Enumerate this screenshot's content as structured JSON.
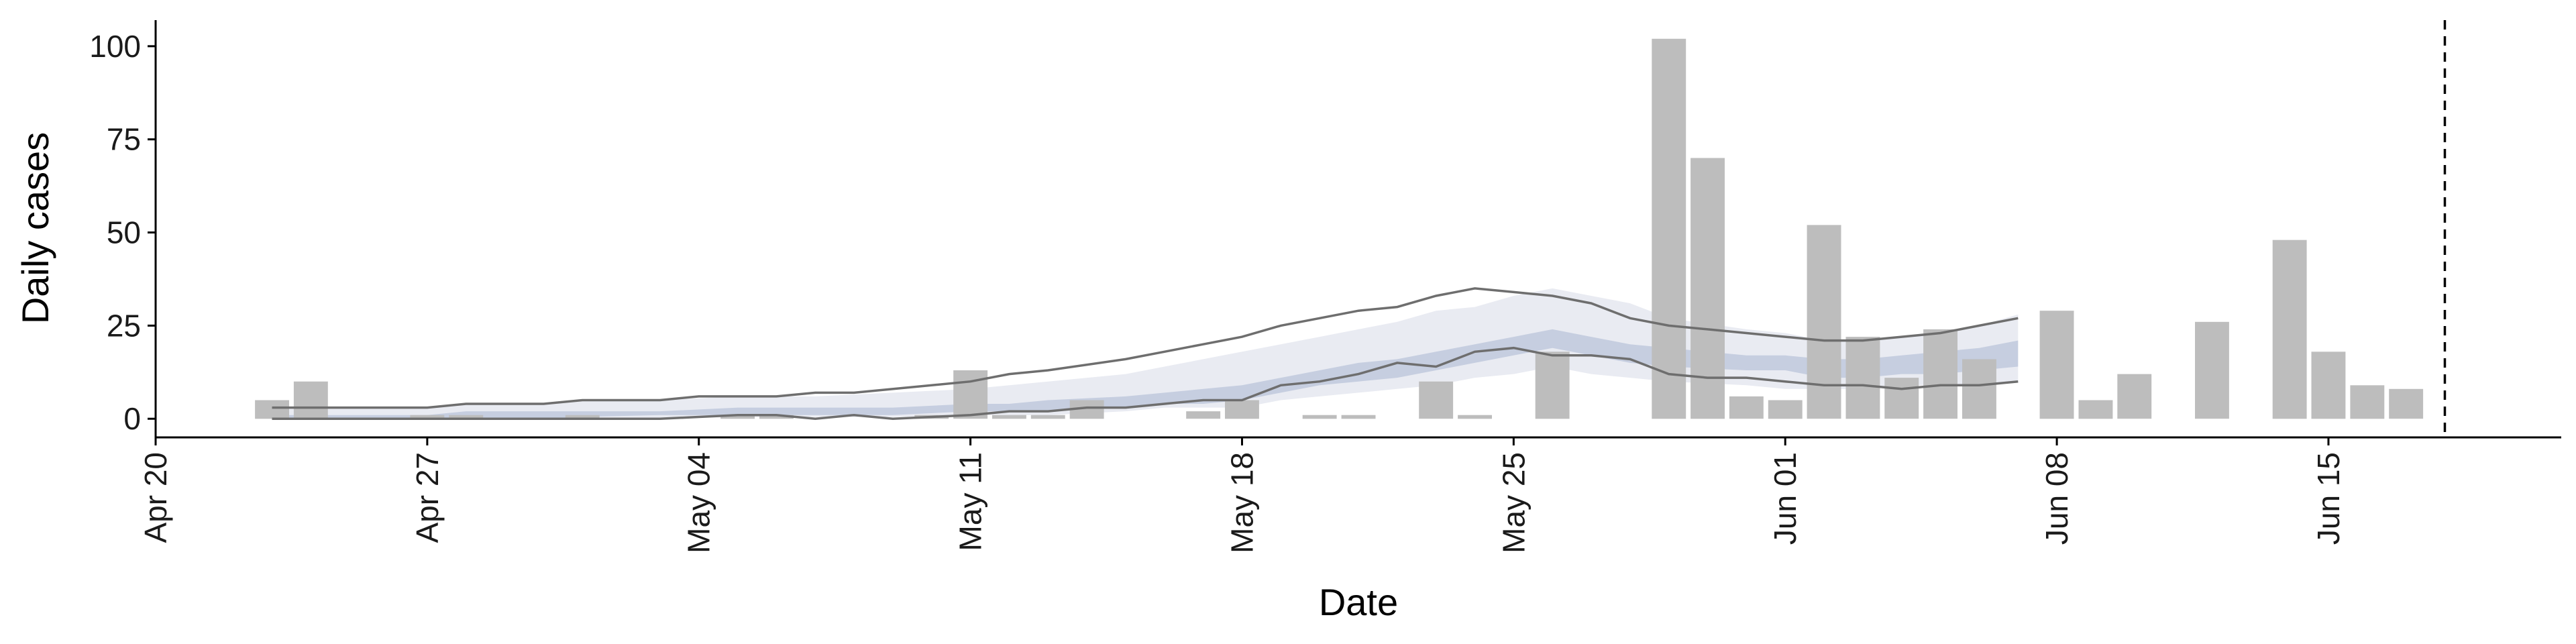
{
  "chart_data": {
    "type": "bar",
    "xlabel": "Date",
    "ylabel": "Daily cases",
    "x_range": [
      "2020-04-20",
      "2020-06-21"
    ],
    "ylim": [
      -5,
      107
    ],
    "y_ticks": [
      0,
      25,
      50,
      75,
      100
    ],
    "x_ticks": [
      {
        "date": "2020-04-20",
        "label": "Apr 20"
      },
      {
        "date": "2020-04-27",
        "label": "Apr 27"
      },
      {
        "date": "2020-05-04",
        "label": "May 04"
      },
      {
        "date": "2020-05-11",
        "label": "May 11"
      },
      {
        "date": "2020-05-18",
        "label": "May 18"
      },
      {
        "date": "2020-05-25",
        "label": "May 25"
      },
      {
        "date": "2020-06-01",
        "label": "Jun 01"
      },
      {
        "date": "2020-06-08",
        "label": "Jun 08"
      },
      {
        "date": "2020-06-15",
        "label": "Jun 15"
      }
    ],
    "grid": false,
    "legend": "none",
    "colors": {
      "bars": "#bdbdbd",
      "band_outer": "#e9ebf2",
      "band_inner": "#c6cee0",
      "band_lines": "#6e6e6e",
      "axis": "#000000"
    },
    "daily_cases": [
      {
        "date": "2020-04-23",
        "value": 5
      },
      {
        "date": "2020-04-24",
        "value": 10
      },
      {
        "date": "2020-04-27",
        "value": 1
      },
      {
        "date": "2020-04-28",
        "value": 1
      },
      {
        "date": "2020-05-01",
        "value": 1
      },
      {
        "date": "2020-05-05",
        "value": 1
      },
      {
        "date": "2020-05-06",
        "value": 1
      },
      {
        "date": "2020-05-10",
        "value": 1
      },
      {
        "date": "2020-05-11",
        "value": 13
      },
      {
        "date": "2020-05-12",
        "value": 1
      },
      {
        "date": "2020-05-13",
        "value": 1
      },
      {
        "date": "2020-05-14",
        "value": 5
      },
      {
        "date": "2020-05-17",
        "value": 2
      },
      {
        "date": "2020-05-18",
        "value": 5
      },
      {
        "date": "2020-05-20",
        "value": 1
      },
      {
        "date": "2020-05-21",
        "value": 1
      },
      {
        "date": "2020-05-23",
        "value": 10
      },
      {
        "date": "2020-05-24",
        "value": 1
      },
      {
        "date": "2020-05-26",
        "value": 18
      },
      {
        "date": "2020-05-29",
        "value": 102
      },
      {
        "date": "2020-05-30",
        "value": 70
      },
      {
        "date": "2020-05-31",
        "value": 6
      },
      {
        "date": "2020-06-01",
        "value": 5
      },
      {
        "date": "2020-06-02",
        "value": 52
      },
      {
        "date": "2020-06-03",
        "value": 22
      },
      {
        "date": "2020-06-04",
        "value": 11
      },
      {
        "date": "2020-06-05",
        "value": 24
      },
      {
        "date": "2020-06-06",
        "value": 16
      },
      {
        "date": "2020-06-08",
        "value": 29
      },
      {
        "date": "2020-06-09",
        "value": 5
      },
      {
        "date": "2020-06-10",
        "value": 12
      },
      {
        "date": "2020-06-12",
        "value": 26
      },
      {
        "date": "2020-06-14",
        "value": 48
      },
      {
        "date": "2020-06-15",
        "value": 18
      },
      {
        "date": "2020-06-16",
        "value": 9
      },
      {
        "date": "2020-06-17",
        "value": 8
      }
    ],
    "estimate_band": {
      "dates": [
        "2020-04-23",
        "2020-04-27",
        "2020-04-28",
        "2020-04-30",
        "2020-05-01",
        "2020-05-03",
        "2020-05-05",
        "2020-05-07",
        "2020-05-09",
        "2020-05-11",
        "2020-05-12",
        "2020-05-13",
        "2020-05-15",
        "2020-05-16",
        "2020-05-17",
        "2020-05-18",
        "2020-05-19",
        "2020-05-20",
        "2020-05-21",
        "2020-05-22",
        "2020-05-23",
        "2020-05-24",
        "2020-05-25",
        "2020-05-26",
        "2020-05-27",
        "2020-05-28",
        "2020-05-29",
        "2020-05-31",
        "2020-06-01",
        "2020-06-02",
        "2020-06-03",
        "2020-06-04",
        "2020-06-05",
        "2020-06-06",
        "2020-06-07"
      ],
      "upper_90": [
        3,
        3,
        4,
        4,
        5,
        5,
        6,
        6,
        7,
        8,
        9,
        10,
        12,
        14,
        16,
        18,
        20,
        22,
        24,
        26,
        29,
        30,
        33,
        35,
        33,
        31,
        27,
        24,
        23,
        21,
        21,
        22,
        23,
        25,
        28
      ],
      "upper_50": [
        1,
        1,
        2,
        2,
        2,
        2,
        3,
        3,
        3,
        4,
        4,
        5,
        6,
        7,
        8,
        9,
        11,
        13,
        15,
        16,
        18,
        20,
        22,
        24,
        22,
        20,
        19,
        17,
        17,
        16,
        16,
        17,
        18,
        19,
        21
      ],
      "median": [
        0.5,
        1,
        1,
        1,
        1.5,
        1.5,
        2,
        2,
        2,
        3,
        3,
        3.5,
        5,
        5.5,
        6,
        7,
        9,
        11,
        12.5,
        14,
        16,
        18,
        20,
        22,
        21,
        19,
        18,
        16,
        15,
        14,
        14,
        15,
        15,
        16,
        17
      ],
      "lower_50": [
        0,
        0,
        0,
        0,
        0.5,
        1,
        1,
        1,
        1,
        2,
        2,
        2,
        3,
        4,
        4,
        5,
        7,
        9,
        10,
        11,
        13,
        15,
        17,
        19,
        17,
        15,
        14,
        13,
        13,
        11,
        11,
        12,
        12,
        13,
        14
      ],
      "lower_90": [
        0,
        0,
        0,
        0,
        0,
        0,
        0.5,
        0.5,
        0.5,
        1,
        1,
        1,
        2,
        3,
        3,
        3,
        5,
        6,
        7,
        8,
        9,
        11,
        12,
        14,
        12,
        11,
        10,
        9,
        8,
        8,
        8,
        9,
        9,
        9,
        10
      ]
    },
    "lines": {
      "upper": {
        "dates": [
          "2020-04-23",
          "2020-04-27",
          "2020-04-28",
          "2020-04-30",
          "2020-05-01",
          "2020-05-03",
          "2020-05-04",
          "2020-05-06",
          "2020-05-07",
          "2020-05-08",
          "2020-05-11",
          "2020-05-12",
          "2020-05-13",
          "2020-05-15",
          "2020-05-16",
          "2020-05-17",
          "2020-05-18",
          "2020-05-19",
          "2020-05-20",
          "2020-05-21",
          "2020-05-22",
          "2020-05-23",
          "2020-05-24",
          "2020-05-25",
          "2020-05-26",
          "2020-05-27",
          "2020-05-28",
          "2020-05-29",
          "2020-05-30",
          "2020-05-31",
          "2020-06-01",
          "2020-06-02",
          "2020-06-03",
          "2020-06-04",
          "2020-06-05",
          "2020-06-06",
          "2020-06-07"
        ],
        "values": [
          3,
          3,
          4,
          4,
          5,
          5,
          6,
          6,
          7,
          7,
          10,
          12,
          13,
          16,
          18,
          20,
          22,
          25,
          27,
          29,
          30,
          33,
          35,
          34,
          33,
          31,
          27,
          25,
          24,
          23,
          22,
          21,
          21,
          22,
          23,
          25,
          27
        ]
      },
      "lower": {
        "dates": [
          "2020-04-23",
          "2020-04-27",
          "2020-04-28",
          "2020-04-30",
          "2020-05-01",
          "2020-05-02",
          "2020-05-03",
          "2020-05-04",
          "2020-05-05",
          "2020-05-06",
          "2020-05-07",
          "2020-05-08",
          "2020-05-09",
          "2020-05-10",
          "2020-05-11",
          "2020-05-12",
          "2020-05-13",
          "2020-05-14",
          "2020-05-15",
          "2020-05-16",
          "2020-05-17",
          "2020-05-18",
          "2020-05-19",
          "2020-05-20",
          "2020-05-21",
          "2020-05-22",
          "2020-05-23",
          "2020-05-24",
          "2020-05-25",
          "2020-05-26",
          "2020-05-27",
          "2020-05-28",
          "2020-05-29",
          "2020-05-30",
          "2020-05-31",
          "2020-06-01",
          "2020-06-02",
          "2020-06-03",
          "2020-06-04",
          "2020-06-05",
          "2020-06-06",
          "2020-06-07"
        ],
        "values": [
          0,
          0,
          0,
          0,
          0,
          0,
          0,
          0.5,
          1,
          1,
          0,
          1,
          0,
          0.5,
          1,
          2,
          2,
          3,
          3,
          4,
          5,
          5,
          9,
          10,
          12,
          15,
          14,
          18,
          19,
          17,
          17,
          16,
          12,
          11,
          11,
          10,
          9,
          9,
          8,
          9,
          9,
          10
        ]
      }
    },
    "reference_line": {
      "date": "2020-06-18",
      "style": "dashed"
    }
  }
}
